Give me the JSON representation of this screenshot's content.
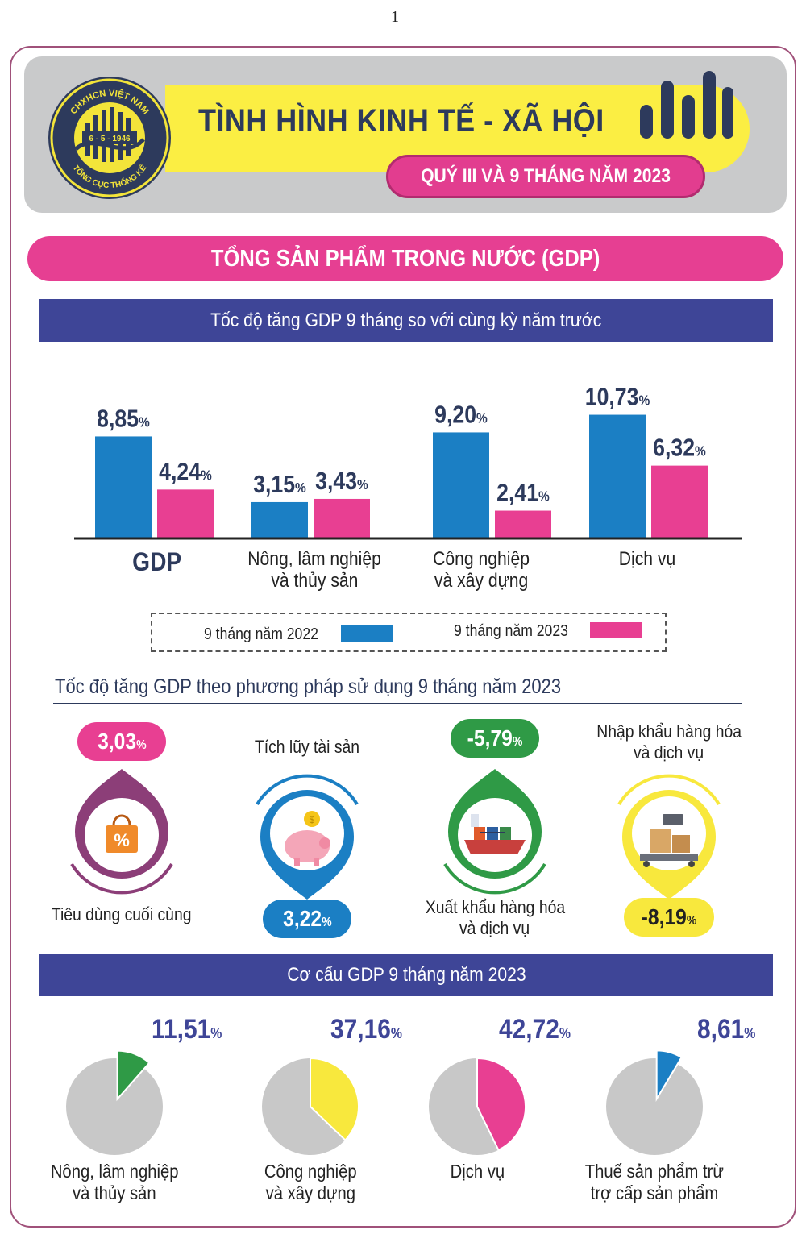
{
  "page_number": "1",
  "header": {
    "logo_ring_top": "CHXHCN VIỆT NAM",
    "logo_date": "6 - 5 - 1946",
    "logo_ring_bottom": "TỔNG CỤC THỐNG KÊ",
    "title": "TÌNH HÌNH KINH TẾ - XÃ HỘI",
    "subtitle": "QUÝ III VÀ 9 THÁNG NĂM 2023"
  },
  "section_title": "TỔNG SẢN PHẨM TRONG NƯỚC (GDP)",
  "colors": {
    "series_2022": "#1b7fc4",
    "series_2023": "#e83f92",
    "accent_blue": "#3e4597",
    "pie_gray": "#c8c8c8"
  },
  "chart_data": [
    {
      "type": "bar",
      "title": "Tốc độ tăng GDP 9 tháng so với cùng kỳ năm trước",
      "categories": [
        "GDP",
        "Nông, lâm nghiệp và thủy sản",
        "Công nghiệp và xây dựng",
        "Dịch vụ"
      ],
      "category_lines": [
        [
          "GDP"
        ],
        [
          "Nông, lâm nghiệp",
          "và thủy sản"
        ],
        [
          "Công nghiệp",
          "và xây dựng"
        ],
        [
          "Dịch vụ"
        ]
      ],
      "unit": "%",
      "series": [
        {
          "name": "9 tháng năm 2022",
          "values": [
            8.85,
            3.15,
            9.2,
            10.73
          ],
          "labels": [
            "8,85",
            "3,15",
            "9,20",
            "10,73"
          ]
        },
        {
          "name": "9 tháng năm 2023",
          "values": [
            4.24,
            3.43,
            2.41,
            6.32
          ],
          "labels": [
            "4,24",
            "3,43",
            "2,41",
            "6,32"
          ]
        }
      ],
      "legend_position": "bottom"
    },
    {
      "type": "pie",
      "title": "Cơ cấu GDP 9 tháng năm 2023",
      "unit": "%",
      "items": [
        {
          "name_lines": [
            "Nông, lâm nghiệp",
            "và thủy sản"
          ],
          "value": 11.51,
          "label": "11,51",
          "color": "#2f9a46"
        },
        {
          "name_lines": [
            "Công nghiệp",
            "và xây dựng"
          ],
          "value": 37.16,
          "label": "37,16",
          "color": "#f8e83d"
        },
        {
          "name_lines": [
            "Dịch vụ"
          ],
          "value": 42.72,
          "label": "42,72",
          "color": "#e83f92"
        },
        {
          "name_lines": [
            "Thuế sản phẩm trừ",
            "trợ cấp sản phẩm"
          ],
          "value": 8.61,
          "label": "8,61",
          "color": "#1b7fc4"
        }
      ]
    }
  ],
  "usage": {
    "title": "Tốc độ tăng GDP theo phương pháp sử dụng 9 tháng năm 2023",
    "unit": "%",
    "items": [
      {
        "name_lines": [
          "Tiêu dùng cuối cùng"
        ],
        "value": 3.03,
        "label": "3,03",
        "icon": "shopping-bag-icon",
        "ring_color": "#8c3e78",
        "pill_color": "#e83f92"
      },
      {
        "name_lines": [
          "Tích lũy tài sản"
        ],
        "value": 3.22,
        "label": "3,22",
        "icon": "piggy-bank-icon",
        "ring_color": "#1b7fc4",
        "pill_color": "#1b7fc4"
      },
      {
        "name_lines": [
          "Xuất khẩu hàng hóa",
          "và dịch vụ"
        ],
        "value": -5.79,
        "label": "-5,79",
        "icon": "cargo-ship-icon",
        "ring_color": "#2f9a46",
        "pill_color": "#2f9a46"
      },
      {
        "name_lines": [
          "Nhập khẩu hàng hóa",
          "và dịch vụ"
        ],
        "value": -8.19,
        "label": "-8,19",
        "icon": "cargo-scale-icon",
        "ring_color": "#f8e83d",
        "pill_color": "#f8e83d"
      }
    ]
  }
}
